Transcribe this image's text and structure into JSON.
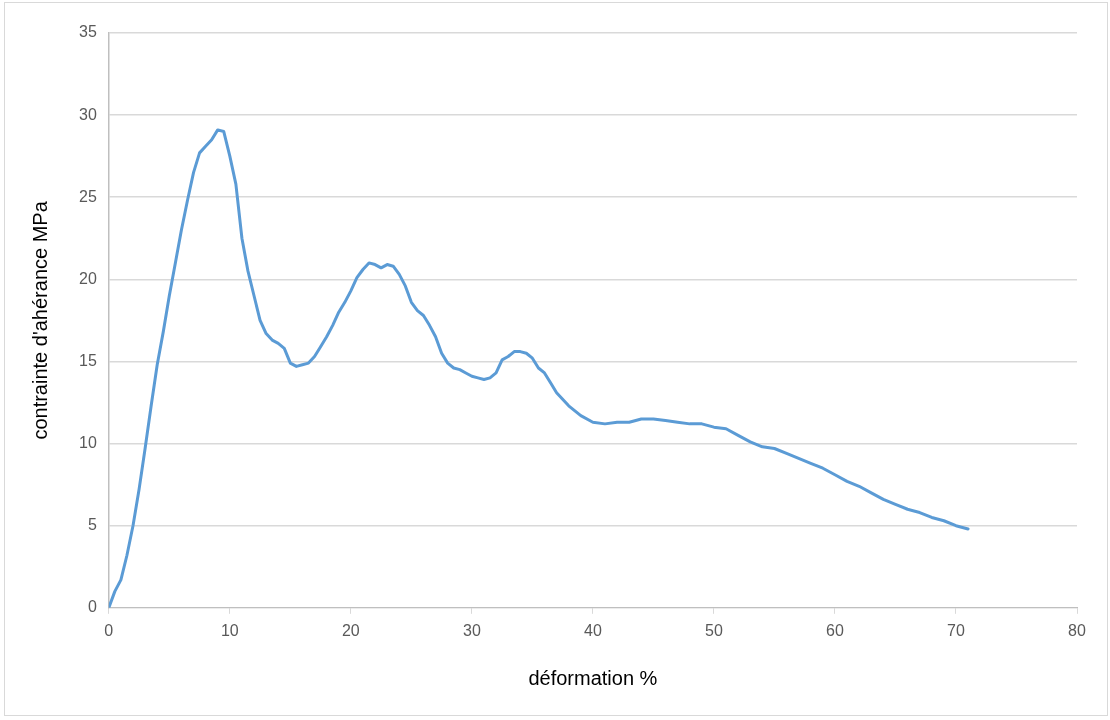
{
  "chart_data": {
    "type": "line",
    "xlabel": "déformation %",
    "ylabel": "contrainte d'ahérance MPa",
    "xlim": [
      0,
      80
    ],
    "xticks": [
      0,
      10,
      20,
      30,
      40,
      50,
      60,
      70,
      80
    ],
    "ylim": [
      0,
      35
    ],
    "yticks": [
      0,
      5,
      10,
      15,
      20,
      25,
      30,
      35
    ],
    "grid": "y",
    "legend": false,
    "marker": "none",
    "line_style": "solid",
    "series": [
      {
        "color": "#5b9bd5",
        "x": [
          0,
          0.5,
          1,
          1.5,
          2,
          2.5,
          3,
          3.5,
          4,
          4.5,
          5,
          5.5,
          6,
          6.5,
          7,
          7.5,
          8,
          8.5,
          9,
          9.5,
          10,
          10.5,
          11,
          11.5,
          12,
          12.5,
          13,
          13.5,
          14,
          14.5,
          15,
          15.5,
          16,
          16.5,
          17,
          17.5,
          18,
          18.5,
          19,
          19.5,
          20,
          20.5,
          21,
          21.5,
          22,
          22.5,
          23,
          23.5,
          24,
          24.5,
          25,
          25.5,
          26,
          26.5,
          27,
          27.5,
          28,
          28.5,
          29,
          29.5,
          30,
          30.5,
          31,
          31.5,
          32,
          32.5,
          33,
          33.5,
          34,
          34.5,
          35,
          35.5,
          36,
          36.5,
          37,
          38,
          39,
          40,
          41,
          42,
          43,
          44,
          45,
          46,
          47,
          48,
          49,
          50,
          51,
          52,
          53,
          54,
          55,
          56,
          57,
          58,
          59,
          60,
          61,
          62,
          63,
          64,
          65,
          66,
          67,
          68,
          69,
          70,
          71
        ],
        "values": [
          0,
          1,
          1.7,
          3.2,
          5,
          7.2,
          9.7,
          12.3,
          14.8,
          16.8,
          19,
          21,
          23,
          24.8,
          26.5,
          27.7,
          28.1,
          28.5,
          29.1,
          29,
          27.5,
          25.8,
          22.5,
          20.5,
          19,
          17.5,
          16.7,
          16.3,
          16.1,
          15.8,
          14.9,
          14.7,
          14.8,
          14.9,
          15.3,
          15.9,
          16.5,
          17.2,
          18,
          18.6,
          19.3,
          20.1,
          20.6,
          21,
          20.9,
          20.7,
          20.9,
          20.8,
          20.3,
          19.6,
          18.6,
          18.1,
          17.8,
          17.2,
          16.5,
          15.5,
          14.9,
          14.6,
          14.5,
          14.3,
          14.1,
          14,
          13.9,
          14,
          14.3,
          15.1,
          15.3,
          15.6,
          15.6,
          15.5,
          15.2,
          14.6,
          14.3,
          13.7,
          13.1,
          12.3,
          11.7,
          11.3,
          11.2,
          11.3,
          11.3,
          11.5,
          11.5,
          11.4,
          11.3,
          11.2,
          11.2,
          11,
          10.9,
          10.5,
          10.1,
          9.8,
          9.7,
          9.4,
          9.1,
          8.8,
          8.5,
          8.1,
          7.7,
          7.4,
          7,
          6.6,
          6.3,
          6,
          5.8,
          5.5,
          5.3,
          5,
          4.8
        ]
      }
    ]
  }
}
